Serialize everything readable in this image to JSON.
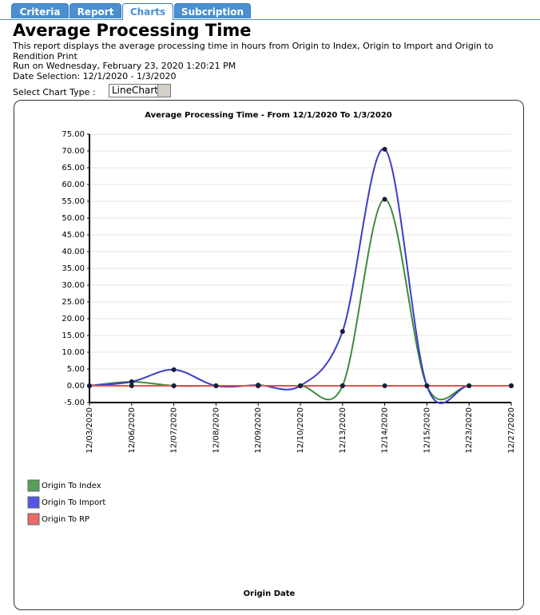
{
  "tabs": [
    "Criteria",
    "Report",
    "Charts",
    "Subcription"
  ],
  "header": {
    "title": "Average Processing Time",
    "description": "This report displays the average processing time in hours from Origin to Index, Origin to Import and Origin to Rendition Print",
    "run_on": "Run on Wednesday, February 23, 2020 1:20:21 PM",
    "date_selection": "Date Selection: 12/1/2020 - 1/3/2020",
    "chart_type_label": "Select Chart Type :",
    "chart_type": "LineChart"
  },
  "chart_data": {
    "type": "line",
    "title": "Average Processing Time - From 12/1/2020 To 1/3/2020",
    "xlabel": "Origin Date",
    "categories": [
      "12/03/2020",
      "12/06/2020",
      "12/07/2020",
      "12/08/2020",
      "12/09/2020",
      "12/10/2020",
      "12/13/2020",
      "12/14/2020",
      "12/15/2020",
      "12/23/2020",
      "12/27/2020"
    ],
    "series": [
      {
        "name": "Origin To Index",
        "color": "#3d8b3d",
        "legend_color": "#5a9e5a",
        "values": [
          0,
          1.2,
          0,
          0,
          0,
          0,
          0,
          55.6,
          0,
          0,
          0
        ]
      },
      {
        "name": "Origin To Import",
        "color": "#3c3cc8",
        "legend_color": "#5555e6",
        "values": [
          0,
          1.2,
          4.8,
          0,
          0.2,
          0,
          16.2,
          70.5,
          0,
          0,
          0
        ]
      },
      {
        "name": "Origin To RP",
        "color": "#e05050",
        "legend_color": "#ea6a6a",
        "values": [
          0,
          0,
          0,
          0,
          0,
          0,
          0,
          0,
          0,
          0,
          0
        ]
      }
    ],
    "ylim": [
      -5,
      75
    ],
    "yticks": [
      {
        "value": -5,
        "label": "-5.00"
      },
      {
        "value": 0,
        "label": "0.00"
      },
      {
        "value": 5,
        "label": "5.00"
      },
      {
        "value": 10,
        "label": "10.00"
      },
      {
        "value": 15,
        "label": "15.00"
      },
      {
        "value": 20,
        "label": "20.00"
      },
      {
        "value": 25,
        "label": "25.00"
      },
      {
        "value": 30,
        "label": "30.00"
      },
      {
        "value": 35,
        "label": "35.00"
      },
      {
        "value": 40,
        "label": "40.00"
      },
      {
        "value": 45,
        "label": "45.00"
      },
      {
        "value": 50,
        "label": "50.00"
      },
      {
        "value": 55,
        "label": "55.00"
      },
      {
        "value": 60,
        "label": "60.00"
      },
      {
        "value": 65,
        "label": "65.00"
      },
      {
        "value": 70,
        "label": "70.00"
      },
      {
        "value": 75,
        "label": "75.00"
      }
    ],
    "grid": true,
    "smooth": true,
    "marker_color": "#1a1a3a"
  }
}
